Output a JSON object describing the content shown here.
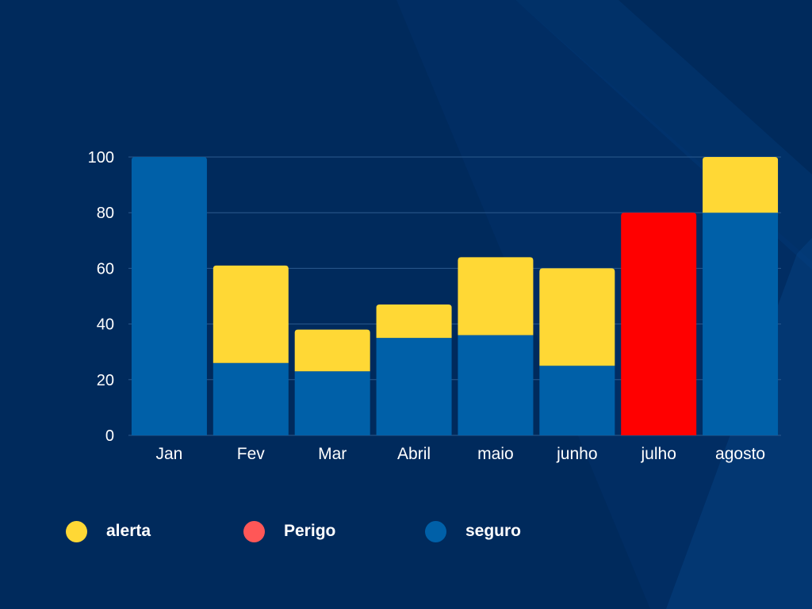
{
  "colors": {
    "background": "#002a5c",
    "seguro": "#0060a8",
    "alerta": "#ffd835",
    "perigo": "#ff0000",
    "perigo_legend": "#ff5757",
    "grid": "#2c5a8e"
  },
  "chart_data": {
    "type": "bar",
    "stacked": true,
    "categories": [
      "Jan",
      "Fev",
      "Mar",
      "Abril",
      "maio",
      "junho",
      "julho",
      "agosto"
    ],
    "series": [
      {
        "name": "seguro",
        "values": [
          100,
          26,
          23,
          35,
          36,
          25,
          0,
          80
        ]
      },
      {
        "name": "alerta",
        "values": [
          0,
          35,
          15,
          12,
          28,
          35,
          0,
          20
        ]
      },
      {
        "name": "Perigo",
        "values": [
          0,
          0,
          0,
          0,
          0,
          0,
          80,
          0
        ]
      }
    ],
    "yticks": [
      0,
      20,
      40,
      60,
      80,
      100
    ],
    "ylim": [
      0,
      100
    ],
    "grid": true,
    "legend_position": "bottom"
  },
  "legend": {
    "items": [
      {
        "label": "alerta",
        "color": "#ffd835"
      },
      {
        "label": "Perigo",
        "color": "#ff5757"
      },
      {
        "label": "seguro",
        "color": "#0060a8"
      }
    ]
  }
}
